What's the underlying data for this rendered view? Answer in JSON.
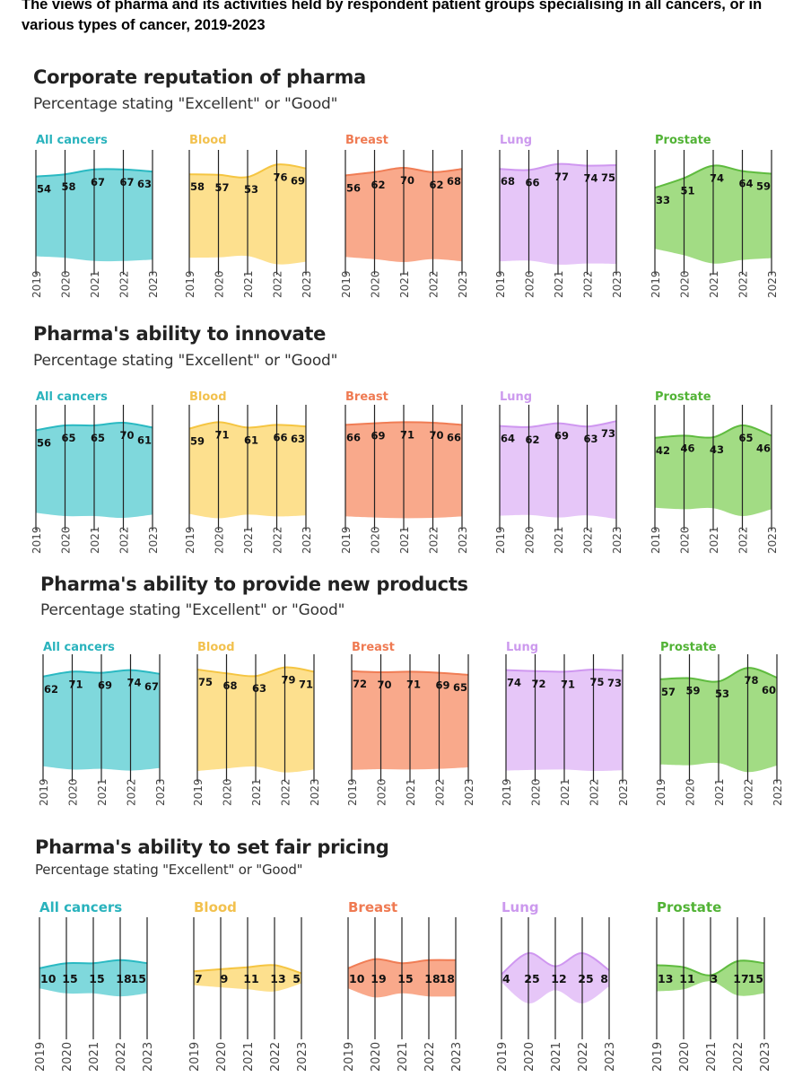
{
  "page_title": "The views of pharma and its activities held by respondent patient groups specialising in all cancers, or in various types of cancer, 2019-2023",
  "colors": {
    "All cancers": {
      "fill": "#7fd8dc",
      "stroke": "#2ab9c2",
      "label": "#2ab3bd"
    },
    "Blood": {
      "fill": "#fde08e",
      "stroke": "#f5c542",
      "label": "#f2c14e"
    },
    "Breast": {
      "fill": "#f9a98b",
      "stroke": "#f07d55",
      "label": "#ef7a52"
    },
    "Lung": {
      "fill": "#e6c6f8",
      "stroke": "#cf97f0",
      "label": "#cc99ee"
    },
    "Prostate": {
      "fill": "#a2dc84",
      "stroke": "#5fbb3f",
      "label": "#52b336"
    }
  },
  "chart_data": [
    {
      "type": "area",
      "title": "Corporate reputation of pharma",
      "subtitle": "Percentage stating \"Excellent\" or \"Good\"",
      "x": [
        "2019",
        "2020",
        "2021",
        "2022",
        "2023"
      ],
      "panels": [
        {
          "name": "All cancers",
          "values": [
            54,
            58,
            67,
            67,
            63
          ]
        },
        {
          "name": "Blood",
          "values": [
            58,
            57,
            53,
            76,
            69
          ]
        },
        {
          "name": "Breast",
          "values": [
            56,
            62,
            70,
            62,
            68
          ]
        },
        {
          "name": "Lung",
          "values": [
            68,
            66,
            77,
            74,
            75
          ]
        },
        {
          "name": "Prostate",
          "values": [
            33,
            51,
            74,
            64,
            59
          ]
        }
      ]
    },
    {
      "type": "area",
      "title": "Pharma's ability to innovate",
      "subtitle": "Percentage stating \"Excellent\" or \"Good\"",
      "x": [
        "2019",
        "2020",
        "2021",
        "2022",
        "2023"
      ],
      "panels": [
        {
          "name": "All cancers",
          "values": [
            56,
            65,
            65,
            70,
            61
          ]
        },
        {
          "name": "Blood",
          "values": [
            59,
            71,
            61,
            66,
            63
          ]
        },
        {
          "name": "Breast",
          "values": [
            66,
            69,
            71,
            70,
            66
          ]
        },
        {
          "name": "Lung",
          "values": [
            64,
            62,
            69,
            63,
            73
          ]
        },
        {
          "name": "Prostate",
          "values": [
            42,
            46,
            43,
            65,
            46
          ]
        }
      ]
    },
    {
      "type": "area",
      "title": "Pharma's ability to provide new products",
      "subtitle": "Percentage stating \"Excellent\" or \"Good\"",
      "x": [
        "2019",
        "2020",
        "2021",
        "2022",
        "2023"
      ],
      "panels": [
        {
          "name": "All cancers",
          "values": [
            62,
            71,
            69,
            74,
            67
          ]
        },
        {
          "name": "Blood",
          "values": [
            75,
            68,
            63,
            79,
            71
          ]
        },
        {
          "name": "Breast",
          "values": [
            72,
            70,
            71,
            69,
            65
          ]
        },
        {
          "name": "Lung",
          "values": [
            74,
            72,
            71,
            75,
            73
          ]
        },
        {
          "name": "Prostate",
          "values": [
            57,
            59,
            53,
            78,
            60
          ]
        }
      ]
    },
    {
      "type": "area",
      "title": "Pharma's ability to set fair pricing",
      "subtitle": "Percentage stating \"Excellent\" or \"Good\"",
      "x": [
        "2019",
        "2020",
        "2021",
        "2022",
        "2023"
      ],
      "panels": [
        {
          "name": "All cancers",
          "values": [
            10,
            15,
            15,
            18,
            15
          ]
        },
        {
          "name": "Blood",
          "values": [
            7,
            9,
            11,
            13,
            5
          ]
        },
        {
          "name": "Breast",
          "values": [
            10,
            19,
            15,
            18,
            18
          ]
        },
        {
          "name": "Lung",
          "values": [
            4,
            25,
            12,
            25,
            8
          ]
        },
        {
          "name": "Prostate",
          "values": [
            13,
            11,
            3,
            17,
            15
          ]
        }
      ]
    }
  ]
}
